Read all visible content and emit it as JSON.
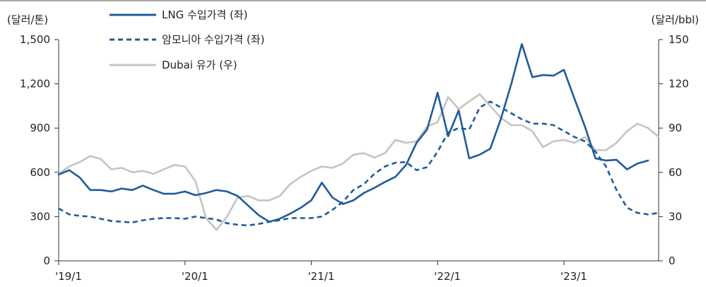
{
  "chart_data": {
    "type": "line",
    "y_left_unit": "(달러/톤)",
    "y_right_unit": "(달러/bbl)",
    "y_left_ticks": [
      "1,500",
      "1,200",
      "900",
      "600",
      "300",
      "0"
    ],
    "y_right_ticks": [
      "150",
      "120",
      "90",
      "60",
      "30",
      "0"
    ],
    "y_left_lim": [
      0,
      1500
    ],
    "y_right_lim": [
      0,
      150
    ],
    "x_tick_labels": [
      "'19/1",
      "'20/1",
      "'21/1",
      "'22/1",
      "'23/1"
    ],
    "x_tick_positions": [
      0,
      12,
      24,
      36,
      48
    ],
    "grid": false,
    "legend_position": "top-left",
    "colors": {
      "lng": "#1f5b99",
      "ammonia": "#1f5b99",
      "dubai": "#c4c4c4"
    },
    "series": [
      {
        "name": "LNG 수입가격 (좌)",
        "axis": "left",
        "style": "solid",
        "x": [
          0,
          1,
          2,
          3,
          4,
          5,
          6,
          7,
          8,
          9,
          10,
          11,
          12,
          13,
          14,
          15,
          16,
          17,
          18,
          19,
          20,
          21,
          22,
          23,
          24,
          25,
          26,
          27,
          28,
          29,
          30,
          31,
          32,
          33,
          34,
          35,
          36,
          37,
          38,
          39,
          40,
          41,
          42,
          43,
          44,
          45,
          46,
          47,
          48,
          49,
          50,
          51,
          52,
          53,
          54,
          55,
          56,
          57
        ],
        "values": [
          585,
          615,
          565,
          480,
          480,
          470,
          490,
          480,
          510,
          480,
          455,
          455,
          470,
          445,
          460,
          480,
          470,
          440,
          375,
          310,
          265,
          285,
          320,
          360,
          410,
          530,
          430,
          385,
          410,
          460,
          495,
          535,
          570,
          650,
          800,
          890,
          1140,
          845,
          1020,
          695,
          720,
          760,
          960,
          1200,
          1470,
          1245,
          1260,
          1255,
          1295,
          1100,
          910,
          695,
          680,
          685,
          620,
          660,
          680,
          null
        ]
      },
      {
        "name": "암모니아 수입가격 (좌)",
        "axis": "left",
        "style": "dashed",
        "x": [
          0,
          1,
          2,
          3,
          4,
          5,
          6,
          7,
          8,
          9,
          10,
          11,
          12,
          13,
          14,
          15,
          16,
          17,
          18,
          19,
          20,
          21,
          22,
          23,
          24,
          25,
          26,
          27,
          28,
          29,
          30,
          31,
          32,
          33,
          34,
          35,
          36,
          37,
          38,
          39,
          40,
          41,
          42,
          43,
          44,
          45,
          46,
          47,
          48,
          49,
          50,
          51,
          52,
          53,
          54,
          55,
          56,
          57
        ],
        "values": [
          355,
          315,
          305,
          300,
          285,
          270,
          265,
          260,
          275,
          285,
          290,
          290,
          285,
          300,
          290,
          280,
          255,
          245,
          240,
          250,
          265,
          275,
          290,
          290,
          290,
          300,
          345,
          400,
          480,
          520,
          590,
          640,
          665,
          670,
          615,
          635,
          740,
          870,
          900,
          890,
          1040,
          1080,
          1040,
          1000,
          960,
          930,
          930,
          920,
          880,
          840,
          810,
          740,
          640,
          480,
          360,
          325,
          315,
          325
        ]
      },
      {
        "name": "Dubai 유가 (우)",
        "axis": "right",
        "style": "solid",
        "x": [
          0,
          1,
          2,
          3,
          4,
          5,
          6,
          7,
          8,
          9,
          10,
          11,
          12,
          13,
          14,
          15,
          16,
          17,
          18,
          19,
          20,
          21,
          22,
          23,
          24,
          25,
          26,
          27,
          28,
          29,
          30,
          31,
          32,
          33,
          34,
          35,
          36,
          37,
          38,
          39,
          40,
          41,
          42,
          43,
          44,
          45,
          46,
          47,
          48,
          49,
          50,
          51,
          52,
          53,
          54,
          55,
          56,
          57
        ],
        "values": [
          59,
          64,
          67,
          71,
          69,
          62,
          63,
          60,
          61,
          59,
          62,
          65,
          64,
          54,
          29,
          21,
          30,
          43,
          44,
          41,
          41,
          44,
          52,
          57,
          61,
          64,
          63,
          66,
          72,
          73,
          70,
          73,
          82,
          80,
          81,
          91,
          94,
          111,
          103,
          108,
          113,
          105,
          97,
          92,
          92,
          88,
          77,
          81,
          82,
          80,
          84,
          75,
          75,
          80,
          88,
          93,
          90,
          84
        ]
      }
    ]
  }
}
